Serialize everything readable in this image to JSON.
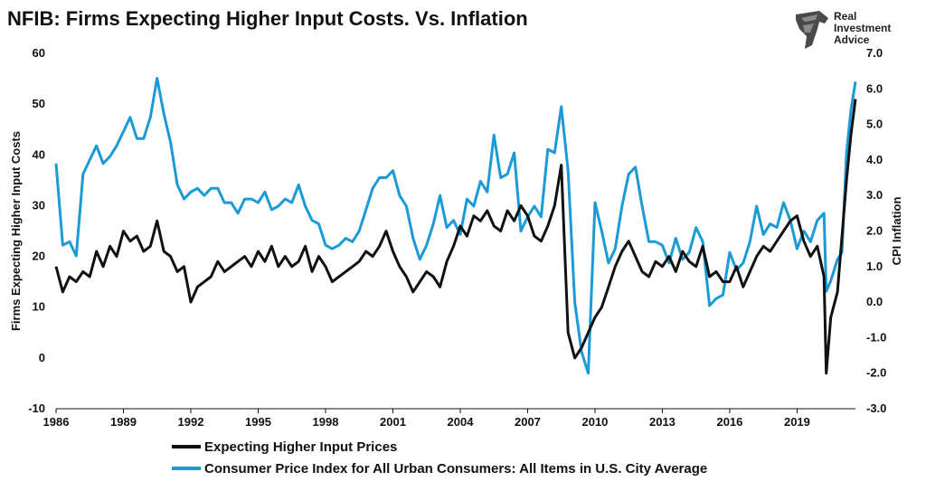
{
  "header": {
    "title": "NFIB: Firms Expecting Higher Input Costs. Vs. Inflation"
  },
  "logo": {
    "icon": "eagle-head-icon",
    "line1": "Real",
    "line2": "Investment",
    "line3": "Advice"
  },
  "chart_data": {
    "type": "line",
    "title": "NFIB: Firms Expecting Higher Input Costs. Vs. Inflation",
    "xlabel": "",
    "ylabel_left": "Firms Expecting Higher Input Costs",
    "ylabel_right": "CPI Inflation",
    "xlim": [
      1986,
      2021.6
    ],
    "ylim_left": [
      -10,
      60
    ],
    "ylim_right": [
      -3.0,
      7.0
    ],
    "x_ticks": [
      1986,
      1989,
      1992,
      1995,
      1998,
      2001,
      2004,
      2007,
      2010,
      2013,
      2016,
      2019
    ],
    "y_left_ticks": [
      -10,
      0,
      10,
      20,
      30,
      40,
      50,
      60
    ],
    "y_right_ticks": [
      "-3.0",
      "-2.0",
      "-1.0",
      "0.0",
      "1.0",
      "2.0",
      "3.0",
      "4.0",
      "5.0",
      "6.0",
      "7.0"
    ],
    "grid": false,
    "legend_position": "bottom",
    "colors": {
      "series1": "#111111",
      "series2": "#1a9ad6"
    },
    "series": [
      {
        "name": "Expecting Higher Input Prices",
        "axis": "left",
        "color": "#111111",
        "x": [
          1986.0,
          1986.3,
          1986.6,
          1986.9,
          1987.2,
          1987.5,
          1987.8,
          1988.1,
          1988.4,
          1988.7,
          1989.0,
          1989.3,
          1989.6,
          1989.9,
          1990.2,
          1990.5,
          1990.8,
          1991.1,
          1991.4,
          1991.7,
          1992.0,
          1992.3,
          1992.6,
          1992.9,
          1993.2,
          1993.5,
          1993.8,
          1994.1,
          1994.4,
          1994.7,
          1995.0,
          1995.3,
          1995.6,
          1995.9,
          1996.2,
          1996.5,
          1996.8,
          1997.1,
          1997.4,
          1997.7,
          1998.0,
          1998.3,
          1998.6,
          1998.9,
          1999.2,
          1999.5,
          1999.8,
          2000.1,
          2000.4,
          2000.7,
          2001.0,
          2001.3,
          2001.6,
          2001.9,
          2002.2,
          2002.5,
          2002.8,
          2003.1,
          2003.4,
          2003.7,
          2004.0,
          2004.3,
          2004.6,
          2004.9,
          2005.2,
          2005.5,
          2005.8,
          2006.1,
          2006.4,
          2006.7,
          2007.0,
          2007.3,
          2007.6,
          2007.9,
          2008.2,
          2008.5,
          2008.8,
          2009.1,
          2009.4,
          2009.7,
          2010.0,
          2010.3,
          2010.6,
          2010.9,
          2011.2,
          2011.5,
          2011.8,
          2012.1,
          2012.4,
          2012.7,
          2013.0,
          2013.3,
          2013.6,
          2013.9,
          2014.2,
          2014.5,
          2014.8,
          2015.1,
          2015.4,
          2015.7,
          2016.0,
          2016.3,
          2016.6,
          2016.9,
          2017.2,
          2017.5,
          2017.8,
          2018.1,
          2018.4,
          2018.7,
          2019.0,
          2019.3,
          2019.6,
          2019.9,
          2020.2,
          2020.3,
          2020.5,
          2020.8,
          2021.0,
          2021.2,
          2021.4,
          2021.6
        ],
        "values": [
          18,
          13,
          16,
          15,
          17,
          16,
          21,
          18,
          22,
          20,
          25,
          23,
          24,
          21,
          22,
          27,
          21,
          20,
          17,
          18,
          11,
          14,
          15,
          16,
          19,
          17,
          18,
          19,
          20,
          18,
          21,
          19,
          22,
          18,
          20,
          18,
          19,
          22,
          17,
          20,
          18,
          15,
          16,
          17,
          18,
          19,
          21,
          20,
          22,
          25,
          21,
          18,
          16,
          13,
          15,
          17,
          16,
          14,
          19,
          22,
          26,
          24,
          28,
          27,
          29,
          26,
          25,
          29,
          27,
          30,
          28,
          24,
          23,
          26,
          30,
          38,
          5,
          0,
          2,
          5,
          8,
          10,
          14,
          18,
          21,
          23,
          20,
          17,
          16,
          19,
          18,
          20,
          17,
          21,
          19,
          18,
          22,
          16,
          17,
          15,
          15,
          18,
          14,
          17,
          20,
          22,
          21,
          23,
          25,
          27,
          28,
          23,
          20,
          22,
          16,
          -3,
          8,
          13,
          24,
          35,
          44,
          51
        ]
      },
      {
        "name": "Consumer Price Index for All Urban Consumers: All Items in U.S. City Average",
        "axis": "right",
        "color": "#1a9ad6",
        "x": [
          1986.0,
          1986.3,
          1986.6,
          1986.9,
          1987.2,
          1987.5,
          1987.8,
          1988.1,
          1988.4,
          1988.7,
          1989.0,
          1989.3,
          1989.6,
          1989.9,
          1990.2,
          1990.5,
          1990.8,
          1991.1,
          1991.4,
          1991.7,
          1992.0,
          1992.3,
          1992.6,
          1992.9,
          1993.2,
          1993.5,
          1993.8,
          1994.1,
          1994.4,
          1994.7,
          1995.0,
          1995.3,
          1995.6,
          1995.9,
          1996.2,
          1996.5,
          1996.8,
          1997.1,
          1997.4,
          1997.7,
          1998.0,
          1998.3,
          1998.6,
          1998.9,
          1999.2,
          1999.5,
          1999.8,
          2000.1,
          2000.4,
          2000.7,
          2001.0,
          2001.3,
          2001.6,
          2001.9,
          2002.2,
          2002.5,
          2002.8,
          2003.1,
          2003.4,
          2003.7,
          2004.0,
          2004.3,
          2004.6,
          2004.9,
          2005.2,
          2005.5,
          2005.8,
          2006.1,
          2006.4,
          2006.7,
          2007.0,
          2007.3,
          2007.6,
          2007.9,
          2008.2,
          2008.5,
          2008.8,
          2009.1,
          2009.4,
          2009.7,
          2010.0,
          2010.3,
          2010.6,
          2010.9,
          2011.2,
          2011.5,
          2011.8,
          2012.1,
          2012.4,
          2012.7,
          2013.0,
          2013.3,
          2013.6,
          2013.9,
          2014.2,
          2014.5,
          2014.8,
          2015.1,
          2015.4,
          2015.7,
          2016.0,
          2016.3,
          2016.6,
          2016.9,
          2017.2,
          2017.5,
          2017.8,
          2018.1,
          2018.4,
          2018.7,
          2019.0,
          2019.3,
          2019.6,
          2019.9,
          2020.2,
          2020.3,
          2020.5,
          2020.8,
          2021.0,
          2021.2,
          2021.4,
          2021.6
        ],
        "values": [
          3.9,
          1.6,
          1.7,
          1.3,
          3.6,
          4.0,
          4.4,
          3.9,
          4.1,
          4.4,
          4.8,
          5.2,
          4.6,
          4.6,
          5.2,
          6.3,
          5.3,
          4.5,
          3.3,
          2.9,
          3.1,
          3.2,
          3.0,
          3.2,
          3.2,
          2.8,
          2.8,
          2.5,
          2.9,
          2.9,
          2.8,
          3.1,
          2.6,
          2.7,
          2.9,
          2.8,
          3.3,
          2.7,
          2.3,
          2.2,
          1.6,
          1.5,
          1.6,
          1.8,
          1.7,
          2.0,
          2.6,
          3.2,
          3.5,
          3.5,
          3.7,
          3.0,
          2.7,
          1.8,
          1.2,
          1.6,
          2.2,
          3.0,
          2.1,
          2.3,
          1.9,
          2.9,
          2.7,
          3.4,
          3.1,
          4.7,
          3.5,
          3.6,
          4.2,
          2.0,
          2.4,
          2.7,
          2.4,
          4.3,
          4.2,
          5.5,
          3.7,
          0.0,
          -1.4,
          -2.0,
          2.8,
          2.0,
          1.1,
          1.5,
          2.7,
          3.6,
          3.8,
          2.7,
          1.7,
          1.7,
          1.6,
          1.1,
          1.8,
          1.2,
          1.4,
          2.1,
          1.7,
          -0.1,
          0.1,
          0.2,
          1.4,
          0.9,
          1.1,
          1.7,
          2.7,
          1.9,
          2.2,
          2.1,
          2.8,
          2.3,
          1.5,
          2.0,
          1.7,
          2.3,
          2.5,
          0.3,
          0.6,
          1.2,
          1.4,
          4.2,
          5.4,
          6.2
        ]
      }
    ]
  }
}
